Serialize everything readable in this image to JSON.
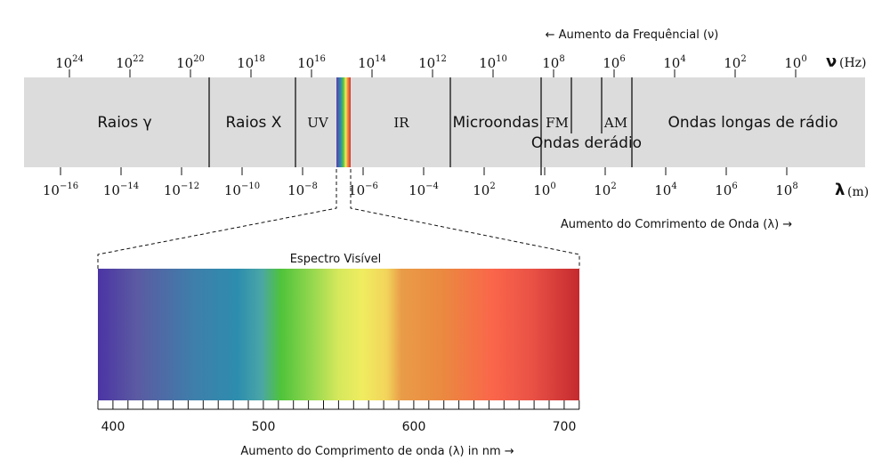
{
  "frequency_axis": {
    "caption": "← Aumento da Frequêncial (ν)",
    "symbol": "ν",
    "unit": "(Hz)",
    "ticks": [
      {
        "base": "10",
        "exp": "24"
      },
      {
        "base": "10",
        "exp": "22"
      },
      {
        "base": "10",
        "exp": "20"
      },
      {
        "base": "10",
        "exp": "18"
      },
      {
        "base": "10",
        "exp": "16"
      },
      {
        "base": "10",
        "exp": "14"
      },
      {
        "base": "10",
        "exp": "12"
      },
      {
        "base": "10",
        "exp": "10"
      },
      {
        "base": "10",
        "exp": "8"
      },
      {
        "base": "10",
        "exp": "6"
      },
      {
        "base": "10",
        "exp": "4"
      },
      {
        "base": "10",
        "exp": "2"
      },
      {
        "base": "10",
        "exp": "0"
      }
    ]
  },
  "regions": [
    {
      "label": "Raios γ"
    },
    {
      "label": "Raios X"
    },
    {
      "label": "UV"
    },
    {
      "label": "IR"
    },
    {
      "label": "Microondas"
    },
    {
      "label": "FM"
    },
    {
      "label": "AM"
    },
    {
      "label": "Ondas derádio"
    },
    {
      "label": "Ondas longas de rádio"
    }
  ],
  "wavelength_axis": {
    "caption": "Aumento do Comrimento de Onda (λ) →",
    "symbol": "λ",
    "unit": "(m)",
    "ticks": [
      {
        "base": "10",
        "exp": "−16"
      },
      {
        "base": "10",
        "exp": "−14"
      },
      {
        "base": "10",
        "exp": "−12"
      },
      {
        "base": "10",
        "exp": "−10"
      },
      {
        "base": "10",
        "exp": "−8"
      },
      {
        "base": "10",
        "exp": "−6"
      },
      {
        "base": "10",
        "exp": "−4"
      },
      {
        "base": "10",
        "exp": "2"
      },
      {
        "base": "10",
        "exp": "0"
      },
      {
        "base": "10",
        "exp": "2"
      },
      {
        "base": "10",
        "exp": "4"
      },
      {
        "base": "10",
        "exp": "6"
      },
      {
        "base": "10",
        "exp": "8"
      }
    ]
  },
  "visible_spectrum": {
    "title": "Espectro Visível",
    "ticks": [
      400,
      500,
      600,
      700
    ],
    "caption": "Aumento do Comprimento de onda (λ) in nm →"
  }
}
